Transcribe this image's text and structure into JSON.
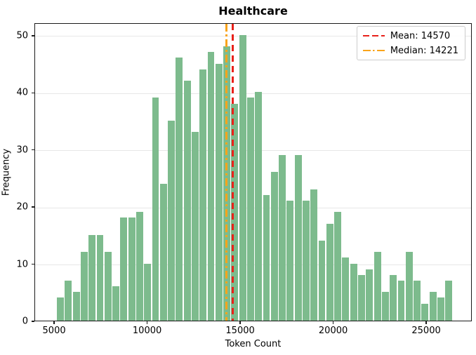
{
  "title": "Healthcare",
  "chart_data": {
    "type": "bar",
    "subtype": "histogram",
    "title": "Healthcare",
    "xlabel": "Token Count",
    "ylabel": "Frequency",
    "bin_start": 5087,
    "bin_width": 426,
    "counts": [
      4,
      7,
      5,
      12,
      15,
      15,
      12,
      6,
      18,
      18,
      19,
      10,
      39,
      24,
      35,
      46,
      42,
      33,
      44,
      47,
      45,
      48,
      38,
      50,
      39,
      40,
      22,
      26,
      29,
      21,
      29,
      21,
      23,
      14,
      17,
      19,
      11,
      10,
      8,
      9,
      12,
      5,
      8,
      7,
      12,
      7,
      3,
      5,
      4,
      7
    ],
    "xlim": [
      3940,
      27450
    ],
    "ylim": [
      0,
      52.2
    ],
    "xticks": [
      5000,
      10000,
      15000,
      20000,
      25000
    ],
    "yticks": [
      0,
      10,
      20,
      30,
      40,
      50
    ],
    "grid": "horizontal",
    "legend_position": "upper right",
    "mean": {
      "value": 14570,
      "label": "Mean: 14570",
      "line_style": "dashed"
    },
    "median": {
      "value": 14221,
      "label": "Median: 14221",
      "line_style": "dashdot"
    }
  },
  "colors": {
    "bar_fill": "#7dbb8d",
    "bar_gap": "#ffffff",
    "mean_line": "#e8211a",
    "median_line": "#f9a41b",
    "grid": "#e7e7e7",
    "spine": "#1a1a1a",
    "background": "#ffffff",
    "text": "#000000"
  }
}
